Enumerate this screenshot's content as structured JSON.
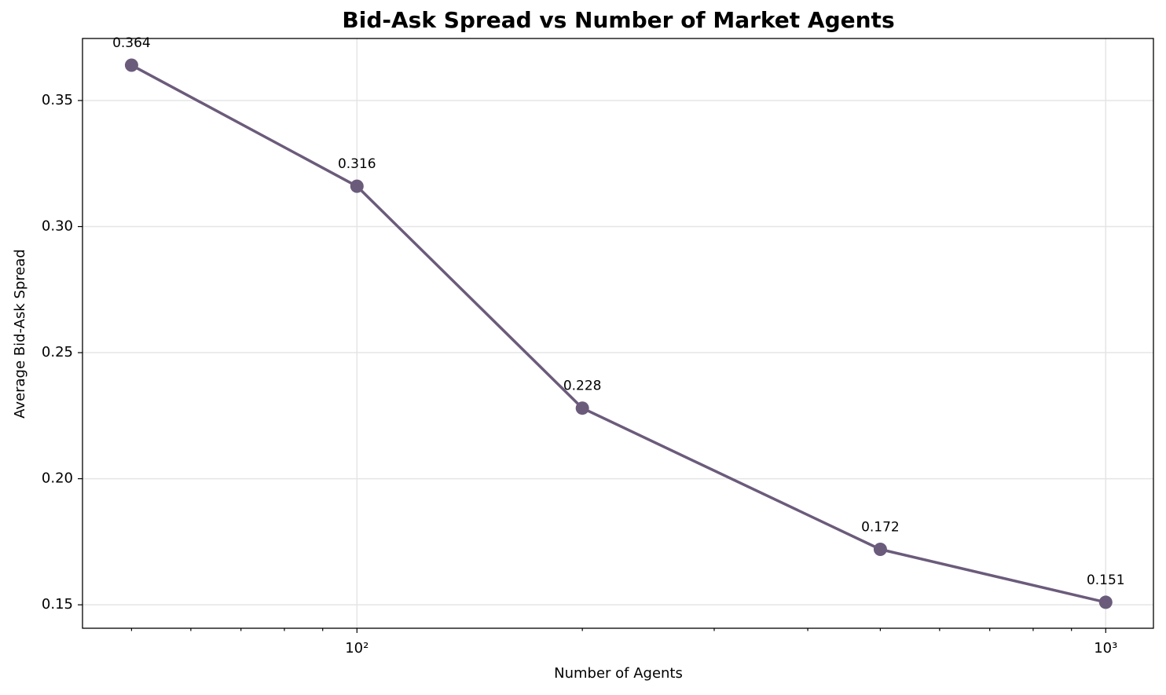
{
  "chart_data": {
    "type": "line",
    "title": "Bid-Ask Spread vs Number of Market Agents",
    "x_label": "Number of Agents",
    "y_label": "Average Bid-Ask Spread",
    "x": [
      50,
      100,
      200,
      500,
      1000
    ],
    "series": [
      {
        "name": "Average Bid-Ask Spread",
        "color": "#6b5b7b",
        "values": [
          0.364,
          0.316,
          0.228,
          0.172,
          0.151
        ]
      }
    ],
    "x_scale": "log",
    "xlim": [
      43,
      1158
    ],
    "xticks": [
      {
        "value": 100,
        "label": "10²"
      },
      {
        "value": 1000,
        "label": "10³"
      }
    ],
    "ylim": [
      0.1407,
      0.3746
    ],
    "yticks": [
      0.15,
      {
        "value": 0.2,
        "label": "0.20"
      },
      0.25,
      {
        "value": 0.3,
        "label": "0.30"
      },
      0.35
    ],
    "grid": true
  }
}
